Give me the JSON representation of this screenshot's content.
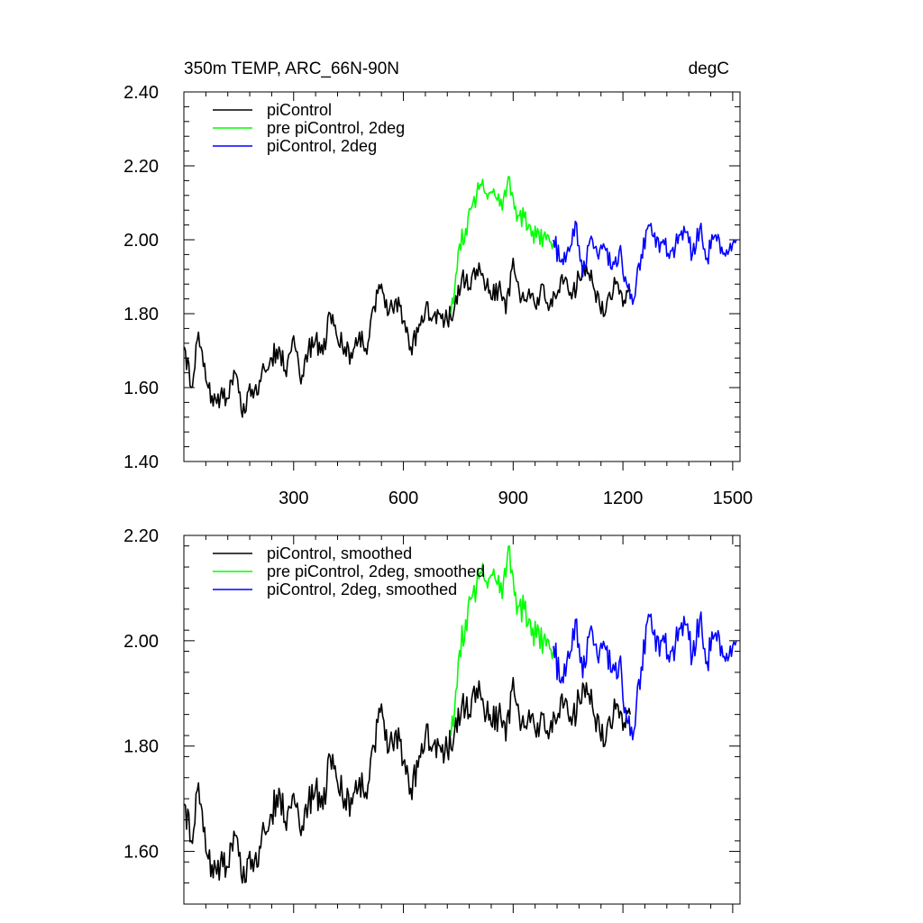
{
  "chart_data": [
    {
      "type": "line",
      "title": "350m TEMP, ARC_66N-90N",
      "units": "degC",
      "xlim": [
        0,
        1520
      ],
      "ylim": [
        1.4,
        2.4
      ],
      "xticks": [
        300,
        600,
        900,
        1200,
        1500
      ],
      "xtick_labels": [
        "300",
        "600",
        "900",
        "1200",
        "1500"
      ],
      "yticks": [
        1.4,
        1.6,
        1.8,
        2.0,
        2.2,
        2.4
      ],
      "ytick_labels": [
        "1.40",
        "1.60",
        "1.80",
        "2.00",
        "2.20",
        "2.40"
      ],
      "legend": "top-left",
      "series": [
        {
          "name": "piControl",
          "color": "#000000",
          "x": [
            1,
            20,
            40,
            60,
            80,
            100,
            120,
            140,
            160,
            180,
            200,
            220,
            240,
            260,
            280,
            300,
            320,
            340,
            360,
            380,
            400,
            420,
            440,
            460,
            480,
            500,
            520,
            540,
            560,
            580,
            600,
            620,
            640,
            660,
            680,
            700,
            720,
            740,
            760,
            780,
            800,
            820,
            840,
            860,
            880,
            900,
            920,
            940,
            960,
            980,
            1000,
            1020,
            1040,
            1060,
            1080,
            1100,
            1120,
            1140,
            1160,
            1180,
            1200,
            1220
          ],
          "values": [
            1.71,
            1.6,
            1.75,
            1.62,
            1.55,
            1.58,
            1.57,
            1.64,
            1.52,
            1.61,
            1.58,
            1.65,
            1.68,
            1.71,
            1.63,
            1.74,
            1.61,
            1.7,
            1.73,
            1.69,
            1.8,
            1.73,
            1.71,
            1.68,
            1.75,
            1.69,
            1.82,
            1.88,
            1.8,
            1.84,
            1.78,
            1.71,
            1.75,
            1.81,
            1.79,
            1.8,
            1.78,
            1.82,
            1.9,
            1.87,
            1.92,
            1.89,
            1.84,
            1.87,
            1.8,
            1.95,
            1.83,
            1.85,
            1.82,
            1.88,
            1.82,
            1.85,
            1.89,
            1.84,
            1.9,
            1.93,
            1.87,
            1.8,
            1.85,
            1.88,
            1.82,
            1.86
          ]
        },
        {
          "name": "pre piControl, 2deg",
          "color": "#00ff00",
          "x": [
            730,
            750,
            770,
            790,
            810,
            830,
            850,
            870,
            890,
            910,
            930,
            950,
            970,
            990,
            1010
          ],
          "values": [
            1.8,
            1.97,
            2.03,
            2.1,
            2.15,
            2.11,
            2.12,
            2.08,
            2.17,
            2.05,
            2.06,
            2.01,
            2.02,
            2.0,
            1.99
          ]
        },
        {
          "name": "piControl, 2deg",
          "color": "#0000ff",
          "x": [
            1010,
            1030,
            1050,
            1070,
            1090,
            1110,
            1130,
            1150,
            1170,
            1190,
            1210,
            1230,
            1250,
            1270,
            1290,
            1310,
            1330,
            1350,
            1370,
            1390,
            1410,
            1430,
            1450,
            1470,
            1490,
            1510
          ],
          "values": [
            2.0,
            1.94,
            1.98,
            2.05,
            1.9,
            2.0,
            1.96,
            1.98,
            1.92,
            1.97,
            1.88,
            1.84,
            1.96,
            2.04,
            1.98,
            2.0,
            1.97,
            1.99,
            2.02,
            1.96,
            2.03,
            1.95,
            2.01,
            1.98,
            1.97,
            2.0
          ]
        }
      ]
    },
    {
      "type": "line",
      "title": "",
      "xlim": [
        0,
        1520
      ],
      "ylim": [
        1.5,
        2.2
      ],
      "xticks": [
        300,
        600,
        900,
        1200,
        1500
      ],
      "yticks": [
        1.6,
        1.8,
        2.0,
        2.2
      ],
      "ytick_labels": [
        "1.60",
        "1.80",
        "2.00",
        "2.20"
      ],
      "legend": "top-left",
      "series": [
        {
          "name": "piControl, smoothed",
          "color": "#000000",
          "x": [
            1,
            20,
            40,
            60,
            80,
            100,
            120,
            140,
            160,
            180,
            200,
            220,
            240,
            260,
            280,
            300,
            320,
            340,
            360,
            380,
            400,
            420,
            440,
            460,
            480,
            500,
            520,
            540,
            560,
            580,
            600,
            620,
            640,
            660,
            680,
            700,
            720,
            740,
            760,
            780,
            800,
            820,
            840,
            860,
            880,
            900,
            920,
            940,
            960,
            980,
            1000,
            1020,
            1040,
            1060,
            1080,
            1100,
            1120,
            1140,
            1160,
            1180,
            1200,
            1220
          ],
          "values": [
            1.69,
            1.62,
            1.73,
            1.6,
            1.55,
            1.58,
            1.57,
            1.63,
            1.54,
            1.6,
            1.57,
            1.64,
            1.67,
            1.72,
            1.64,
            1.71,
            1.63,
            1.69,
            1.72,
            1.68,
            1.78,
            1.73,
            1.7,
            1.69,
            1.74,
            1.7,
            1.8,
            1.88,
            1.79,
            1.83,
            1.77,
            1.72,
            1.76,
            1.82,
            1.8,
            1.8,
            1.79,
            1.83,
            1.88,
            1.86,
            1.91,
            1.87,
            1.84,
            1.86,
            1.81,
            1.93,
            1.83,
            1.85,
            1.83,
            1.86,
            1.83,
            1.85,
            1.88,
            1.84,
            1.89,
            1.92,
            1.86,
            1.81,
            1.85,
            1.87,
            1.83,
            1.86
          ]
        },
        {
          "name": "pre piControl, 2deg, smoothed",
          "color": "#00ff00",
          "x": [
            730,
            750,
            770,
            790,
            810,
            830,
            850,
            870,
            890,
            910,
            930,
            950,
            970,
            990,
            1010
          ],
          "values": [
            1.82,
            1.96,
            2.04,
            2.09,
            2.13,
            2.1,
            2.12,
            2.08,
            2.18,
            2.05,
            2.06,
            2.01,
            2.02,
            1.99,
            1.98
          ]
        },
        {
          "name": "piControl, 2deg, smoothed",
          "color": "#0000ff",
          "x": [
            1010,
            1030,
            1050,
            1070,
            1090,
            1110,
            1130,
            1150,
            1170,
            1190,
            1210,
            1230,
            1250,
            1270,
            1290,
            1310,
            1330,
            1350,
            1370,
            1390,
            1410,
            1430,
            1450,
            1470,
            1490,
            1510
          ],
          "values": [
            1.99,
            1.92,
            1.98,
            2.04,
            1.93,
            2.02,
            1.97,
            1.99,
            1.94,
            1.96,
            1.85,
            1.83,
            1.95,
            2.05,
            1.98,
            2.01,
            1.98,
            2.0,
            2.03,
            1.97,
            2.04,
            1.96,
            2.01,
            1.99,
            1.97,
            2.0
          ]
        }
      ]
    }
  ]
}
